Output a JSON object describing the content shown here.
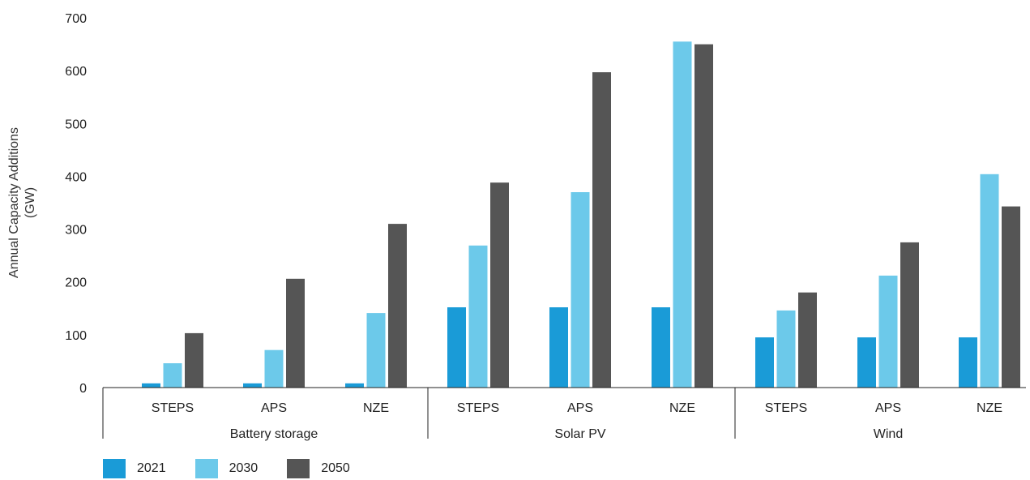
{
  "chart_data": {
    "type": "bar",
    "ylabel_lines": [
      "Annual Capacity Additions",
      "(GW)"
    ],
    "ylim": [
      0,
      700
    ],
    "yticks": [
      0,
      100,
      200,
      300,
      400,
      500,
      600,
      700
    ],
    "groups": [
      {
        "name": "Battery storage",
        "categories": [
          "STEPS",
          "APS",
          "NZE"
        ]
      },
      {
        "name": "Solar PV",
        "categories": [
          "STEPS",
          "APS",
          "NZE"
        ]
      },
      {
        "name": "Wind",
        "categories": [
          "STEPS",
          "APS",
          "NZE"
        ]
      }
    ],
    "series": [
      {
        "name": "2021",
        "color": "#1a9bd7",
        "values": [
          8,
          8,
          8,
          152,
          152,
          152,
          95,
          95,
          95
        ]
      },
      {
        "name": "2030",
        "color": "#6cc9ea",
        "values": [
          46,
          71,
          141,
          269,
          370,
          655,
          146,
          212,
          404
        ]
      },
      {
        "name": "2050",
        "color": "#555555",
        "values": [
          103,
          206,
          310,
          388,
          597,
          650,
          180,
          275,
          343
        ]
      }
    ],
    "legend_position": "bottom-left",
    "grid": false
  }
}
